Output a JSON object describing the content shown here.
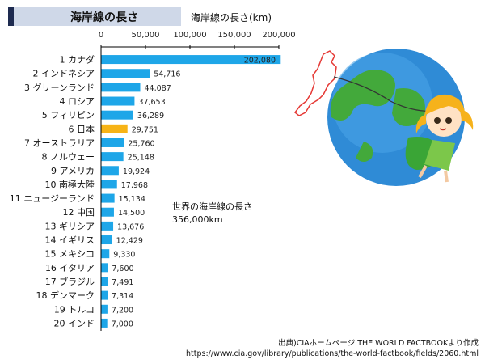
{
  "title": "海岸線の長さ",
  "axis_title": "海岸線の長さ(km)",
  "total_note": {
    "line1": "世界の海岸線の長さ",
    "line2": "356,000km"
  },
  "source": {
    "line1": "出典)CIAホームページ THE WORLD FACTBOOKより作成",
    "line2": "https://www.cia.gov/library/publications/the-world-factbook/fields/2060.html"
  },
  "colors": {
    "bar": "#1ea6e8",
    "highlight": "#f7b316",
    "axis": "#000000"
  },
  "illustration": {
    "icons": [
      "globe-icon",
      "japan-map-icon",
      "girl-character-icon"
    ]
  },
  "chart_data": {
    "type": "bar",
    "orientation": "horizontal",
    "xlim": [
      0,
      200000
    ],
    "x_ticks": [
      "0",
      "50,000",
      "100,000",
      "150,000",
      "200,000"
    ],
    "x_tick_values": [
      0,
      50000,
      100000,
      150000,
      200000
    ],
    "highlight_category": "日本",
    "bars": [
      {
        "rank": "1",
        "name": "カナダ",
        "value": 202080,
        "label": "202,080"
      },
      {
        "rank": "2",
        "name": "インドネシア",
        "value": 54716,
        "label": "54,716"
      },
      {
        "rank": "3",
        "name": "グリーンランド",
        "value": 44087,
        "label": "44,087"
      },
      {
        "rank": "4",
        "name": "ロシア",
        "value": 37653,
        "label": "37,653"
      },
      {
        "rank": "5",
        "name": "フィリピン",
        "value": 36289,
        "label": "36,289"
      },
      {
        "rank": "6",
        "name": "日本",
        "value": 29751,
        "label": "29,751"
      },
      {
        "rank": "7",
        "name": "オーストラリア",
        "value": 25760,
        "label": "25,760"
      },
      {
        "rank": "8",
        "name": "ノルウェー",
        "value": 25148,
        "label": "25,148"
      },
      {
        "rank": "9",
        "name": "アメリカ",
        "value": 19924,
        "label": "19,924"
      },
      {
        "rank": "10",
        "name": "南極大陸",
        "value": 17968,
        "label": "17,968"
      },
      {
        "rank": "11",
        "name": "ニュージーランド",
        "value": 15134,
        "label": "15,134"
      },
      {
        "rank": "12",
        "name": "中国",
        "value": 14500,
        "label": "14,500"
      },
      {
        "rank": "13",
        "name": "ギリシア",
        "value": 13676,
        "label": "13,676"
      },
      {
        "rank": "14",
        "name": "イギリス",
        "value": 12429,
        "label": "12,429"
      },
      {
        "rank": "15",
        "name": "メキシコ",
        "value": 9330,
        "label": "9,330"
      },
      {
        "rank": "16",
        "name": "イタリア",
        "value": 7600,
        "label": "7,600"
      },
      {
        "rank": "17",
        "name": "ブラジル",
        "value": 7491,
        "label": "7,491"
      },
      {
        "rank": "18",
        "name": "デンマーク",
        "value": 7314,
        "label": "7,314"
      },
      {
        "rank": "19",
        "name": "トルコ",
        "value": 7200,
        "label": "7,200"
      },
      {
        "rank": "20",
        "name": "インド",
        "value": 7000,
        "label": "7,000"
      }
    ]
  }
}
